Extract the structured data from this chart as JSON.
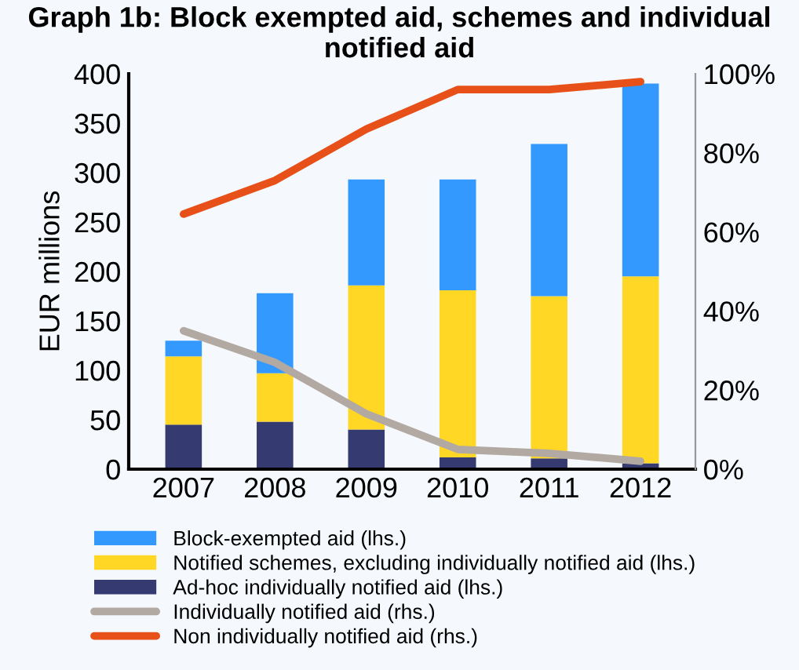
{
  "chart_data": {
    "type": "bar",
    "title": "Graph 1b: Block exempted aid, schemes and individual notified aid",
    "ylabel": "EUR millions",
    "categories": [
      "2007",
      "2008",
      "2009",
      "2010",
      "2011",
      "2012"
    ],
    "stacked": true,
    "series": [
      {
        "name": "Ad-hoc individually notified aid (lhs.)",
        "color": "#353b70",
        "values": [
          45,
          48,
          40,
          12,
          11,
          6
        ]
      },
      {
        "name": "Notified schemes, excluding individually notified aid (lhs.)",
        "color": "#ffd724",
        "values": [
          69,
          49,
          146,
          169,
          164,
          189
        ]
      },
      {
        "name": "Block-exempted aid (lhs.)",
        "color": "#3399ff",
        "values": [
          16,
          81,
          107,
          112,
          154,
          195
        ]
      },
      {
        "name": "Individually notified aid (rhs.)",
        "type": "line",
        "axis": "y2",
        "color": "#b3a9a3",
        "values": [
          35,
          27,
          14,
          5,
          4,
          2
        ]
      },
      {
        "name": "Non individually notified aid (rhs.)",
        "type": "line",
        "axis": "y2",
        "color": "#e8501a",
        "values": [
          64.5,
          73,
          86,
          96,
          96,
          98
        ]
      }
    ],
    "ylim": [
      0,
      400
    ],
    "yticks": [
      0,
      50,
      100,
      150,
      200,
      250,
      300,
      350,
      400
    ],
    "y2lim": [
      0,
      100
    ],
    "y2ticks": [
      {
        "value": 0,
        "label": "0%"
      },
      {
        "value": 20,
        "label": "20%"
      },
      {
        "value": 40,
        "label": "40%"
      },
      {
        "value": 60,
        "label": "60%"
      },
      {
        "value": 80,
        "label": "80%"
      },
      {
        "value": 100,
        "label": "100%"
      }
    ],
    "grid": false,
    "legend": "bottom"
  }
}
